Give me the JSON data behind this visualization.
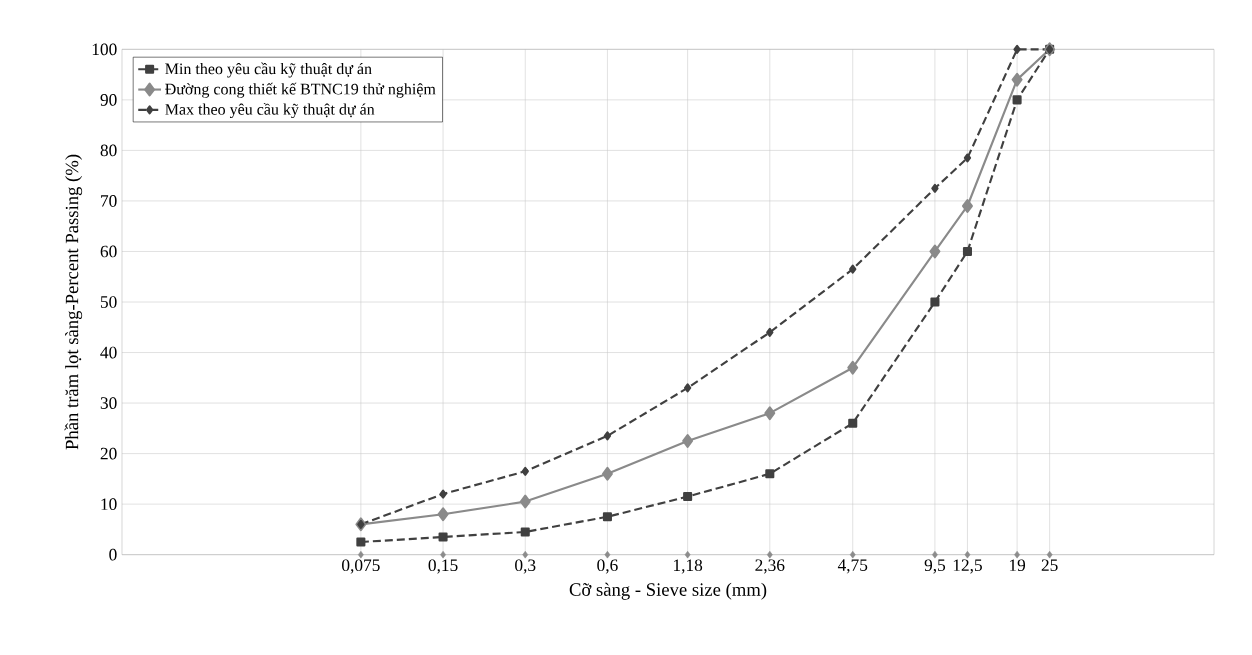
{
  "chart_data": {
    "type": "line",
    "xlabel": "Cỡ sàng - Sieve size (mm)",
    "ylabel": "Phần trăm lọt sàng-Percent Passing (%)",
    "x": [
      0.075,
      0.15,
      0.3,
      0.6,
      1.18,
      2.36,
      4.75,
      9.5,
      12.5,
      19,
      25
    ],
    "series": [
      {
        "name": "Min theo yêu cầu kỹ thuật dự án",
        "color": "#404040",
        "marker": "square",
        "line_style": "dashed",
        "values": [
          2.5,
          3.5,
          4.5,
          7.5,
          11.5,
          16,
          26,
          50,
          60,
          90,
          100
        ]
      },
      {
        "name": "Đường cong thiết kế BTNC19 thử nghiệm",
        "color": "#8a8a8a",
        "marker": "diamond",
        "line_style": "solid",
        "values": [
          6,
          8,
          10.5,
          16,
          22.5,
          28,
          37,
          60,
          69,
          94,
          100
        ]
      },
      {
        "name": "Max theo yêu cầu kỹ thuật dự án",
        "color": "#404040",
        "marker": "diamond",
        "line_style": "dashed",
        "values": [
          6,
          12,
          16.5,
          23.5,
          33,
          44,
          56.5,
          72.5,
          78.5,
          100,
          100
        ]
      },
      {
        "type": "scatter",
        "color": "#8c8c8c",
        "marker": "diamond",
        "values": [
          0,
          0,
          0,
          0,
          0,
          0,
          0,
          0,
          0,
          0,
          0
        ]
      }
    ],
    "log": "x",
    "xlim": [
      0.01,
      100
    ],
    "xticks": [
      {
        "value": 0.075,
        "label": "0,075"
      },
      {
        "value": 0.15,
        "label": "0,15"
      },
      {
        "value": 0.3,
        "label": "0,3"
      },
      {
        "value": 0.6,
        "label": "0,6"
      },
      {
        "value": 1.18,
        "label": "1,18"
      },
      {
        "value": 2.36,
        "label": "2,36"
      },
      {
        "value": 4.75,
        "label": "4,75"
      },
      {
        "value": 9.5,
        "label": "9,5"
      },
      {
        "value": 12.5,
        "label": "12,5"
      },
      {
        "value": 19,
        "label": "19"
      },
      {
        "value": 25,
        "label": "25"
      }
    ],
    "ylim": [
      0,
      100
    ],
    "yticks": [
      0,
      10,
      20,
      30,
      40,
      50,
      60,
      70,
      80,
      90,
      100
    ],
    "grid": true,
    "legend": "top left"
  }
}
